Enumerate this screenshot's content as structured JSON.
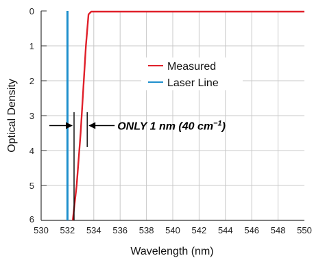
{
  "chart_data": {
    "type": "line",
    "xlabel": "Wavelength (nm)",
    "ylabel": "Optical Density",
    "xlim": [
      530,
      550
    ],
    "ylim": [
      0,
      6
    ],
    "y_inverted": true,
    "grid": true,
    "x_ticks": [
      530,
      532,
      534,
      536,
      538,
      540,
      542,
      544,
      546,
      548,
      550
    ],
    "y_ticks": [
      0,
      1,
      2,
      3,
      4,
      5,
      6
    ],
    "legend_position": "center-right",
    "series": [
      {
        "name": "Measured",
        "color": "#e0202a",
        "x": [
          532.4,
          532.7,
          533.0,
          533.4,
          533.6,
          533.8,
          534.0,
          550.0
        ],
        "y": [
          6.0,
          5.0,
          3.5,
          1.0,
          0.1,
          0.02,
          0.02,
          0.02
        ]
      },
      {
        "name": "Laser Line",
        "color": "#1e8fcc",
        "x": [
          532.0,
          532.0
        ],
        "y": [
          0,
          6
        ]
      }
    ],
    "annotation": {
      "text_main": "ONLY 1 nm (40 cm",
      "text_sup": "−1",
      "text_end": ")",
      "x_start": 532.5,
      "x_end": 533.5,
      "y": 3.5
    }
  }
}
